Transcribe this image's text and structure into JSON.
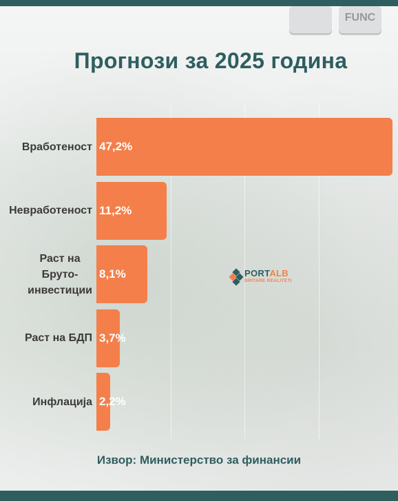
{
  "header": {
    "title": "Прогнози за 2025 година"
  },
  "footer": {
    "source": "Извор: Министерство за финансии"
  },
  "logo": {
    "name": "PORTALB",
    "part1": "PORT",
    "part2": "ALB",
    "tagline": "DRITARE REALITETI"
  },
  "colors": {
    "bar": "#f47f4a",
    "accent": "#2f5e5f"
  },
  "chart_data": {
    "type": "bar",
    "orientation": "horizontal",
    "title": "Прогнози за 2025 година",
    "categories": [
      "Вработеност",
      "Невработеност",
      "Раст на Бруто-инвестиции",
      "Раст на БДП",
      "Инфлација"
    ],
    "category_lines": [
      [
        "Вработеност"
      ],
      [
        "Невработеност"
      ],
      [
        "Раст на",
        "Бруто-",
        "инвестиции"
      ],
      [
        "Раст на БДП"
      ],
      [
        "Инфлација"
      ]
    ],
    "values": [
      47.2,
      11.2,
      8.1,
      3.7,
      2.2
    ],
    "value_labels": [
      "47,2%",
      "11,2%",
      "8,1%",
      "3,7%",
      "2,2%"
    ],
    "xlim": [
      0,
      47.2
    ],
    "grid": true,
    "legend": "none"
  }
}
